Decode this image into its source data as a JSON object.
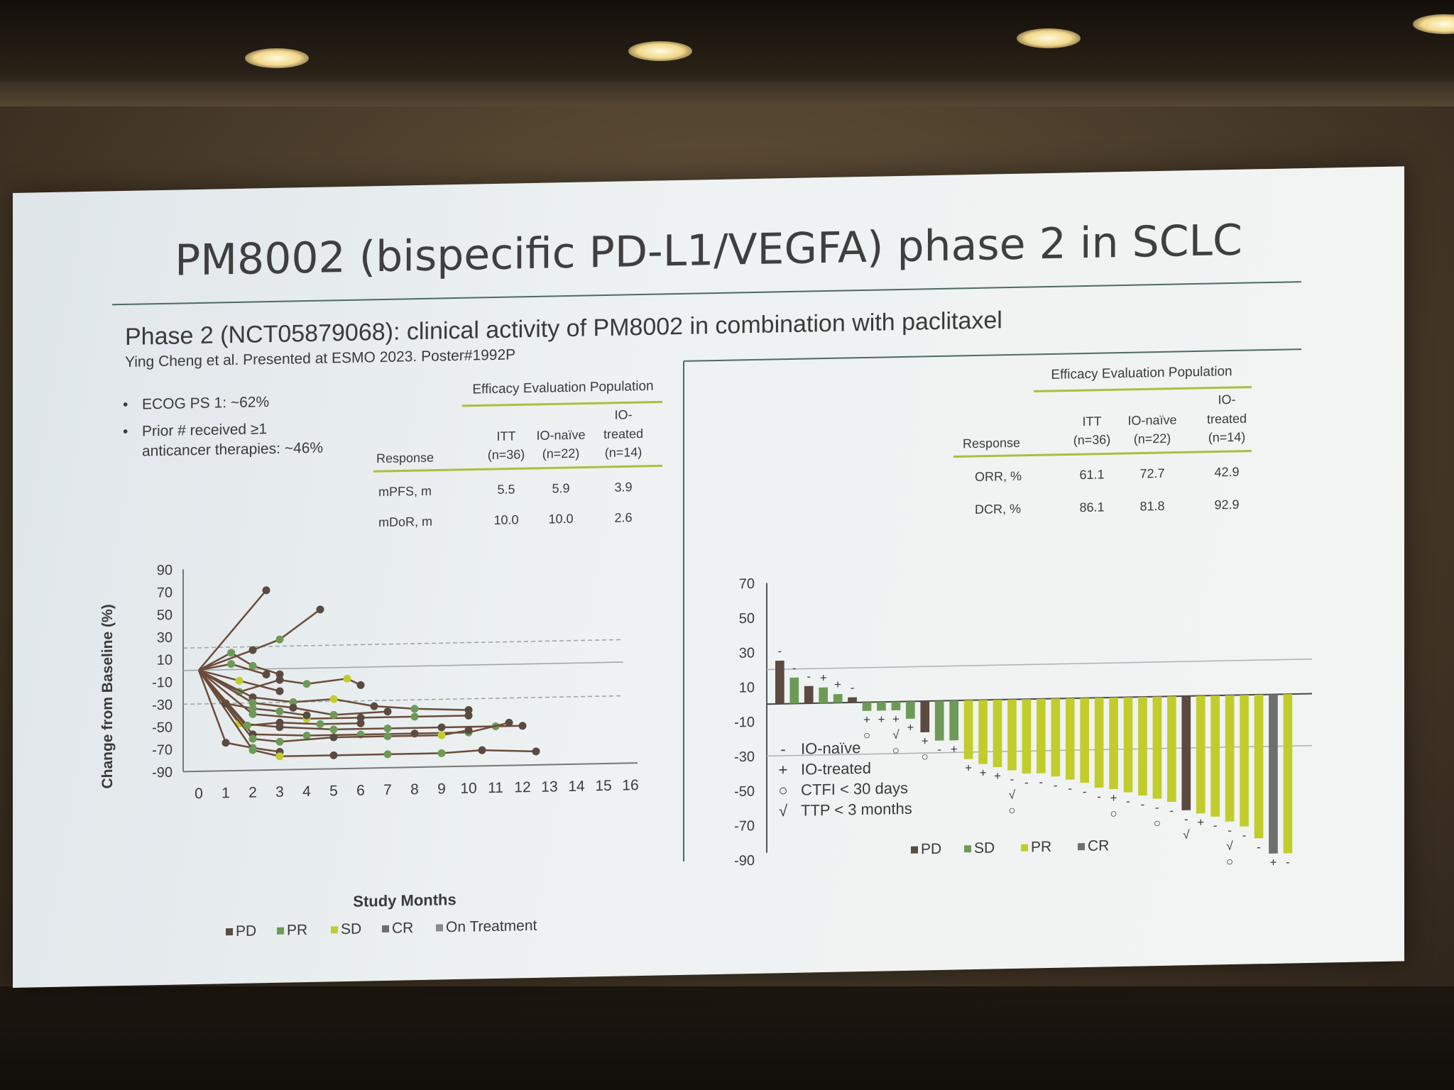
{
  "slide": {
    "title": "PM8002 (bispecific PD-L1/VEGFA) phase 2 in SCLC",
    "subtitle": "Phase 2 (NCT05879068): clinical activity of PM8002 in combination with paclitaxel",
    "citation": "Ying Cheng et al. Presented at ESMO 2023. Poster#1992P",
    "bullets": [
      "ECOG PS 1: ~62%",
      "Prior # received ≥1",
      "anticancer therapies: ~46%"
    ]
  },
  "colors": {
    "accent_line": "#a9bf3f",
    "pd": "#5b4a40",
    "sd": "#6e9a57",
    "pr": "#c2cd2c",
    "cr": "#6e6e6e",
    "spider_line": "#6b4c3a"
  },
  "left_table": {
    "header_group": "Efficacy Evaluation Population",
    "columns": [
      {
        "line1": "",
        "line2": "Response"
      },
      {
        "line1": "ITT",
        "line2": "(n=36)"
      },
      {
        "line1": "IO-naïve",
        "line2": "(n=22)"
      },
      {
        "line1": "IO-",
        "line1b": "treated",
        "line2": "(n=14)"
      }
    ],
    "rows": [
      {
        "label": "mPFS, m",
        "itt": "5.5",
        "naive": "5.9",
        "treated": "3.9"
      },
      {
        "label": "mDoR, m",
        "itt": "10.0",
        "naive": "10.0",
        "treated": "2.6"
      }
    ]
  },
  "right_table": {
    "header_group": "Efficacy Evaluation Population",
    "columns": [
      {
        "line1": "",
        "line2": "Response"
      },
      {
        "line1": "ITT",
        "line2": "(n=36)"
      },
      {
        "line1": "IO-naïve",
        "line2": "(n=22)"
      },
      {
        "line1": "IO-",
        "line1b": "treated",
        "line2": "(n=14)"
      }
    ],
    "rows": [
      {
        "label": "ORR, %",
        "itt": "61.1",
        "naive": "72.7",
        "treated": "42.9"
      },
      {
        "label": "DCR, %",
        "itt": "86.1",
        "naive": "81.8",
        "treated": "92.9"
      }
    ]
  },
  "chart_data": [
    {
      "type": "line",
      "ylabel": "Change from Baseline (%)",
      "xlabel": "Study Months",
      "xlim": [
        0,
        16
      ],
      "ylim": [
        -90,
        90
      ],
      "x_ticks": [
        "0",
        "1",
        "2",
        "3",
        "4",
        "5",
        "6",
        "7",
        "8",
        "9",
        "10",
        "11",
        "12",
        "13",
        "14",
        "15",
        "16"
      ],
      "y_ticks": [
        "90",
        "70",
        "50",
        "30",
        "10",
        "-10",
        "-30",
        "-50",
        "-70",
        "-90"
      ],
      "reference_lines": [
        20,
        0,
        -30
      ],
      "legend": [
        "PD",
        "PR",
        "SD",
        "CR",
        "On Treatment"
      ],
      "series": [
        {
          "x": [
            0,
            2.5
          ],
          "y": [
            0,
            70
          ]
        },
        {
          "x": [
            0,
            2,
            3,
            4.5
          ],
          "y": [
            0,
            17,
            26,
            52
          ]
        },
        {
          "x": [
            0,
            1.2,
            2,
            3
          ],
          "y": [
            0,
            15,
            3,
            -5
          ]
        },
        {
          "x": [
            0,
            1.5,
            3,
            4,
            5.5,
            6
          ],
          "y": [
            0,
            -20,
            -10,
            -14,
            -10,
            -16
          ]
        },
        {
          "x": [
            0,
            2,
            3.5,
            5,
            6.5,
            8,
            10
          ],
          "y": [
            0,
            -25,
            -30,
            -28,
            -35,
            -38,
            -40
          ]
        },
        {
          "x": [
            0,
            2,
            4,
            6,
            8,
            10
          ],
          "y": [
            0,
            -40,
            -45,
            -45,
            -45,
            -45
          ]
        },
        {
          "x": [
            0,
            1.5,
            3,
            5,
            7,
            9,
            11,
            12
          ],
          "y": [
            0,
            -48,
            -52,
            -55,
            -55,
            -55,
            -55,
            -55
          ]
        },
        {
          "x": [
            0,
            2,
            4,
            6,
            8,
            10,
            11.5
          ],
          "y": [
            0,
            -58,
            -60,
            -60,
            -60,
            -60,
            -52
          ]
        },
        {
          "x": [
            0,
            2,
            3,
            5,
            7,
            9,
            10
          ],
          "y": [
            0,
            -62,
            -65,
            -62,
            -62,
            -62,
            -58
          ]
        },
        {
          "x": [
            0,
            2,
            3.5,
            5,
            7
          ],
          "y": [
            0,
            -30,
            -35,
            -42,
            -40
          ]
        },
        {
          "x": [
            0,
            1,
            2,
            3
          ],
          "y": [
            0,
            -65,
            -70,
            -74
          ]
        },
        {
          "x": [
            0,
            2,
            3,
            5,
            7,
            9,
            10.5,
            12.5
          ],
          "y": [
            0,
            -72,
            -78,
            -78,
            -78,
            -78,
            -76,
            -78
          ]
        },
        {
          "x": [
            0,
            1.5,
            3
          ],
          "y": [
            0,
            -10,
            -20
          ]
        },
        {
          "x": [
            0,
            1,
            2,
            3,
            4
          ],
          "y": [
            0,
            -30,
            -35,
            -38,
            -42
          ]
        },
        {
          "x": [
            0,
            1.2,
            2.5
          ],
          "y": [
            0,
            5,
            -5
          ]
        },
        {
          "x": [
            0,
            1.8,
            3,
            4.5,
            6
          ],
          "y": [
            0,
            -50,
            -48,
            -50,
            -50
          ]
        }
      ]
    },
    {
      "type": "bar",
      "y_ticks": [
        "70",
        "50",
        "30",
        "10",
        "-10",
        "-30",
        "-50",
        "-70",
        "-90"
      ],
      "ylim": [
        -90,
        70
      ],
      "reference_lines": [
        20,
        -30
      ],
      "legend": [
        "PD",
        "SD",
        "PR",
        "CR"
      ],
      "annotation_key": [
        {
          "symbol": "-",
          "text": "IO-naïve"
        },
        {
          "symbol": "+",
          "text": "IO-treated"
        },
        {
          "symbol": "○",
          "text": "CTFI < 30 days"
        },
        {
          "symbol": "√",
          "text": "TTP < 3 months"
        }
      ],
      "bars": [
        {
          "value": 25,
          "status": "PD",
          "marks": [
            "-"
          ]
        },
        {
          "value": 15,
          "status": "SD",
          "marks": [
            "-"
          ]
        },
        {
          "value": 10,
          "status": "PD",
          "marks": [
            "-"
          ]
        },
        {
          "value": 9,
          "status": "SD",
          "marks": [
            "+"
          ]
        },
        {
          "value": 5,
          "status": "SD",
          "marks": [
            "+"
          ]
        },
        {
          "value": 3,
          "status": "PD",
          "marks": [
            "-"
          ]
        },
        {
          "value": -5,
          "status": "SD",
          "marks": [
            "+",
            "○"
          ]
        },
        {
          "value": -5,
          "status": "SD",
          "marks": [
            "+"
          ]
        },
        {
          "value": -5,
          "status": "SD",
          "marks": [
            "+",
            "√",
            "○"
          ]
        },
        {
          "value": -10,
          "status": "SD",
          "marks": [
            "+"
          ]
        },
        {
          "value": -18,
          "status": "PD",
          "marks": [
            "+",
            "○"
          ]
        },
        {
          "value": -23,
          "status": "SD",
          "marks": [
            "-"
          ]
        },
        {
          "value": -23,
          "status": "SD",
          "marks": [
            "+"
          ]
        },
        {
          "value": -34,
          "status": "PR",
          "marks": [
            "+"
          ]
        },
        {
          "value": -37,
          "status": "PR",
          "marks": [
            "+"
          ]
        },
        {
          "value": -39,
          "status": "PR",
          "marks": [
            "+"
          ]
        },
        {
          "value": -41,
          "status": "PR",
          "marks": [
            "-",
            "√",
            "○"
          ]
        },
        {
          "value": -43,
          "status": "PR",
          "marks": [
            "-"
          ]
        },
        {
          "value": -43,
          "status": "PR",
          "marks": [
            "-"
          ]
        },
        {
          "value": -45,
          "status": "PR",
          "marks": [
            "-"
          ]
        },
        {
          "value": -47,
          "status": "PR",
          "marks": [
            "-"
          ]
        },
        {
          "value": -49,
          "status": "PR",
          "marks": [
            "-"
          ]
        },
        {
          "value": -52,
          "status": "PR",
          "marks": [
            "-"
          ]
        },
        {
          "value": -53,
          "status": "PR",
          "marks": [
            "+",
            "○"
          ]
        },
        {
          "value": -55,
          "status": "PR",
          "marks": [
            "-"
          ]
        },
        {
          "value": -57,
          "status": "PR",
          "marks": [
            "-"
          ]
        },
        {
          "value": -59,
          "status": "PR",
          "marks": [
            "-",
            "○"
          ]
        },
        {
          "value": -61,
          "status": "PR",
          "marks": [
            "-"
          ]
        },
        {
          "value": -66,
          "status": "PD",
          "marks": [
            "-",
            "√"
          ]
        },
        {
          "value": -68,
          "status": "PR",
          "marks": [
            "+"
          ]
        },
        {
          "value": -70,
          "status": "PR",
          "marks": [
            "-"
          ]
        },
        {
          "value": -73,
          "status": "PR",
          "marks": [
            "-",
            "√",
            "○"
          ]
        },
        {
          "value": -76,
          "status": "PR",
          "marks": [
            "-"
          ]
        },
        {
          "value": -83,
          "status": "PR",
          "marks": [
            "-"
          ]
        },
        {
          "value": -92,
          "status": "CR",
          "marks": [
            "+"
          ]
        },
        {
          "value": -92,
          "status": "PR",
          "marks": [
            "-"
          ]
        }
      ]
    }
  ]
}
